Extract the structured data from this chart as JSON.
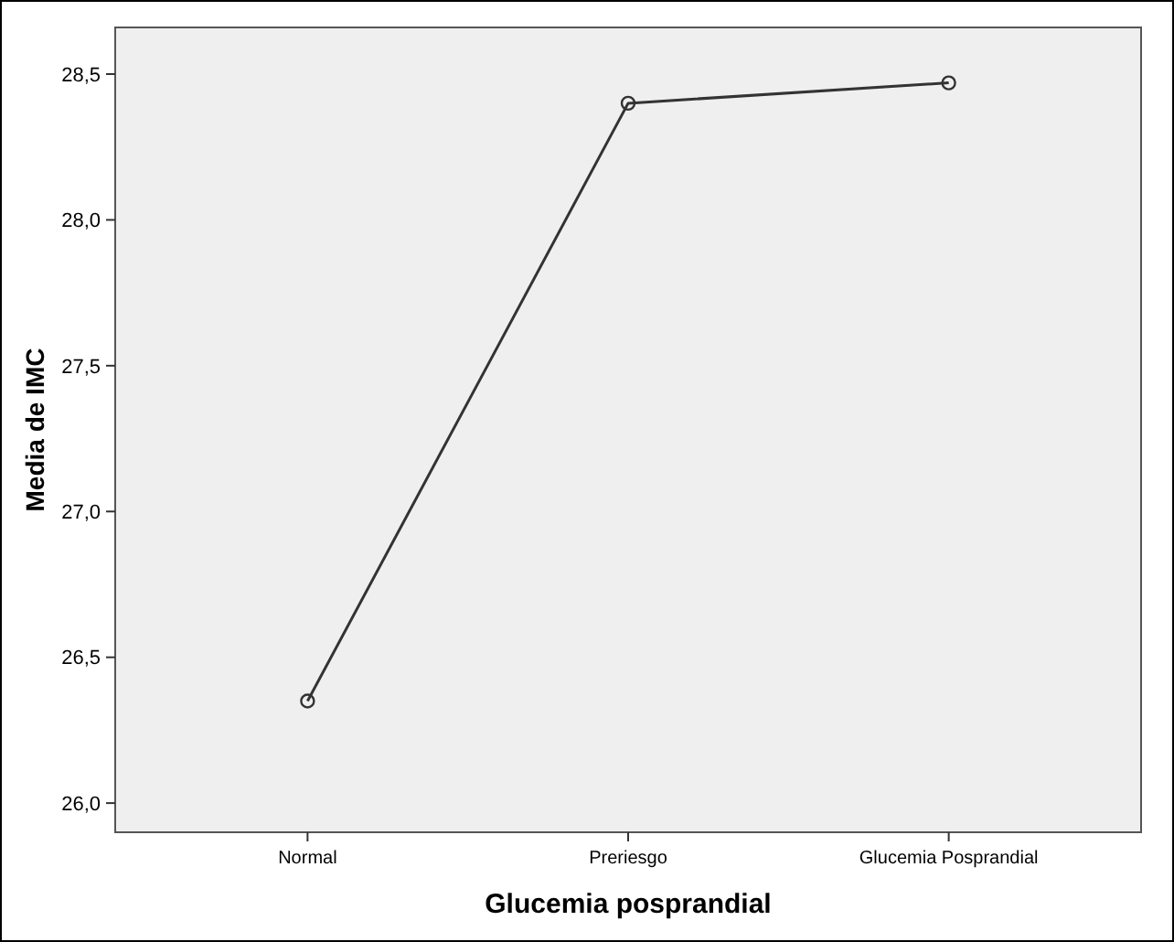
{
  "chart_data": {
    "type": "line",
    "xlabel": "Glucemia posprandial",
    "ylabel": "Media de IMC",
    "categories": [
      "Normal",
      "Preriesgo",
      "Glucemia Posprandial"
    ],
    "series": [
      {
        "color": "#333333",
        "values": [
          26.35,
          28.4,
          28.47
        ]
      }
    ],
    "ylim": [
      25.9,
      28.66
    ],
    "yticks": [
      {
        "value": 26,
        "label": "26,0"
      },
      {
        "value": 26.5,
        "label": "26,5"
      },
      {
        "value": 27,
        "label": "27,0"
      },
      {
        "value": 27.5,
        "label": "27,5"
      },
      {
        "value": 28,
        "label": "28,0"
      },
      {
        "value": 28.5,
        "label": "28,5"
      }
    ],
    "marker": "circle",
    "line_style": "solid",
    "grid": false
  }
}
